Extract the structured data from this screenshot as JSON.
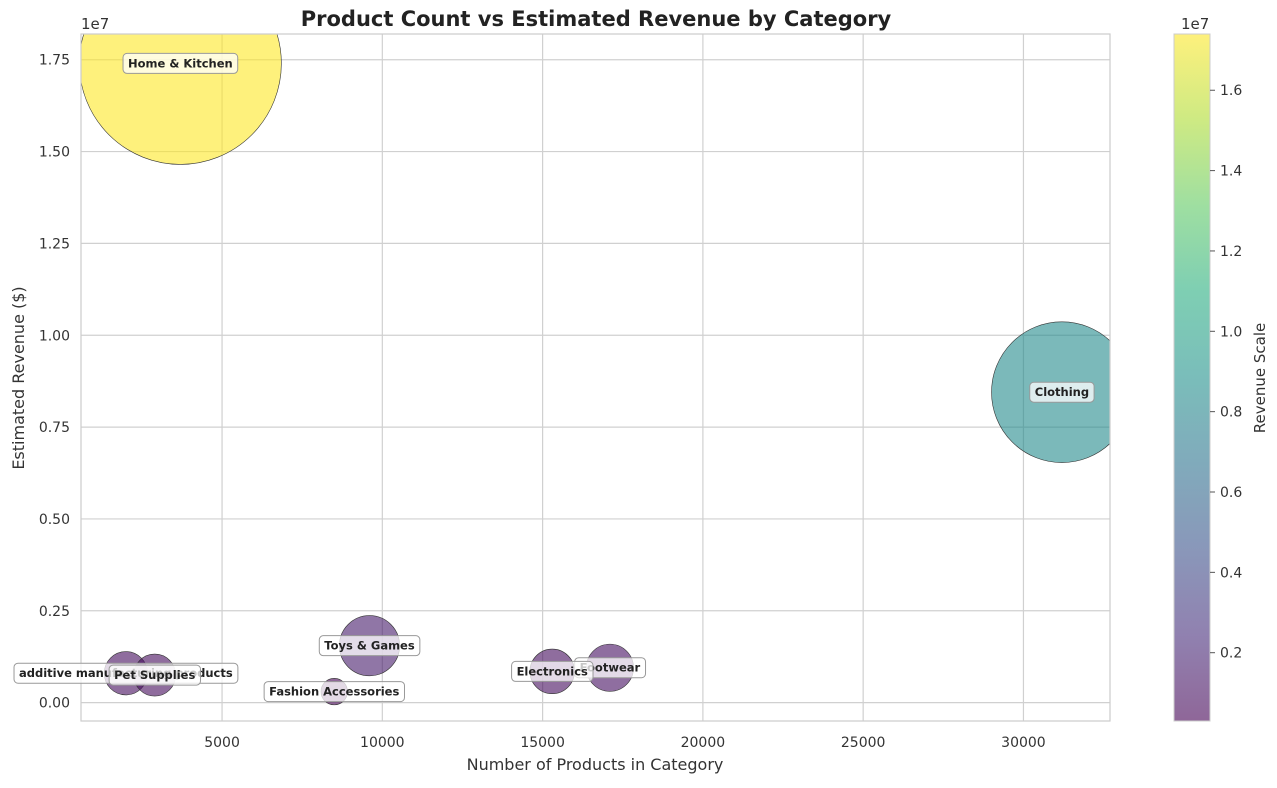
{
  "chart_data": {
    "type": "scatter",
    "title": "Product Count vs Estimated Revenue by Category",
    "xlabel": "Number of Products in Category",
    "ylabel": "Estimated Revenue ($)",
    "y_offset_label": "1e7",
    "xlim": [
      600,
      32700
    ],
    "ylim": [
      -0.05,
      1.82
    ],
    "y_unit_multiplier": 10000000,
    "x_ticks": [
      5000,
      10000,
      15000,
      20000,
      25000,
      30000
    ],
    "x_tick_labels": [
      "5000",
      "10000",
      "15000",
      "20000",
      "25000",
      "30000"
    ],
    "y_ticks": [
      0,
      0.25,
      0.5,
      0.75,
      1.0,
      1.25,
      1.5,
      1.75
    ],
    "y_tick_labels": [
      "0.00",
      "0.25",
      "0.50",
      "0.75",
      "1.00",
      "1.25",
      "1.50",
      "1.75"
    ],
    "grid": true,
    "colorbar": {
      "label": "Revenue Scale",
      "offset_label": "1e7",
      "range": [
        0.03,
        1.74
      ],
      "ticks": [
        0.2,
        0.4,
        0.6,
        0.8,
        1.0,
        1.2,
        1.4,
        1.6
      ],
      "tick_labels": [
        "0.2",
        "0.4",
        "0.6",
        "0.8",
        "1.0",
        "1.2",
        "1.4",
        "1.6"
      ],
      "colormap": "viridis"
    },
    "points": [
      {
        "label": "Home & Kitchen",
        "x": 3700,
        "y": 1.74
      },
      {
        "label": "Clothing",
        "x": 31200,
        "y": 0.845
      },
      {
        "label": "Toys & Games",
        "x": 9600,
        "y": 0.155
      },
      {
        "label": "Footwear",
        "x": 17100,
        "y": 0.095
      },
      {
        "label": "Electronics",
        "x": 15300,
        "y": 0.085
      },
      {
        "label": "additive manufacturing products",
        "x": 2000,
        "y": 0.08
      },
      {
        "label": "Pet Supplies",
        "x": 2900,
        "y": 0.075
      },
      {
        "label": "Fashion Accessories",
        "x": 8500,
        "y": 0.03
      }
    ]
  }
}
